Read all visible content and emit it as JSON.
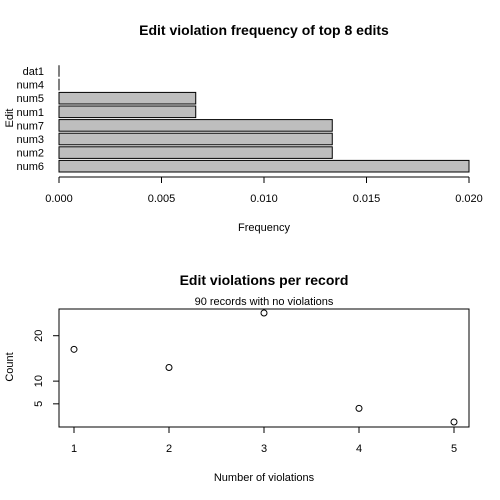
{
  "chart_data": [
    {
      "type": "bar",
      "orientation": "horizontal",
      "title": "Edit violation frequency of top 8 edits",
      "xlabel": "Frequency",
      "ylabel": "Edit",
      "categories": [
        "num6",
        "num2",
        "num3",
        "num7",
        "num1",
        "num5",
        "num4",
        "dat1"
      ],
      "values": [
        0.02,
        0.01333,
        0.01333,
        0.01333,
        0.00667,
        0.00667,
        0.0,
        0.0
      ],
      "xlim": [
        0,
        0.02
      ],
      "xticks": [
        "0.000",
        "0.005",
        "0.010",
        "0.015",
        "0.020"
      ],
      "bar_color": "#bebebe",
      "grid": false
    },
    {
      "type": "scatter",
      "title": "Edit violations per record",
      "subtitle": "90 records with no violations",
      "xlabel": "Number of violations",
      "ylabel": "Count",
      "x": [
        1,
        2,
        3,
        4,
        5
      ],
      "y": [
        17,
        13,
        25,
        4,
        1
      ],
      "xlim": [
        1,
        5
      ],
      "ylim": [
        1,
        25
      ],
      "xticks": [
        "1",
        "2",
        "3",
        "4",
        "5"
      ],
      "yticks": [
        "5",
        "10",
        "20"
      ],
      "marker": "open-circle",
      "grid": false
    }
  ]
}
